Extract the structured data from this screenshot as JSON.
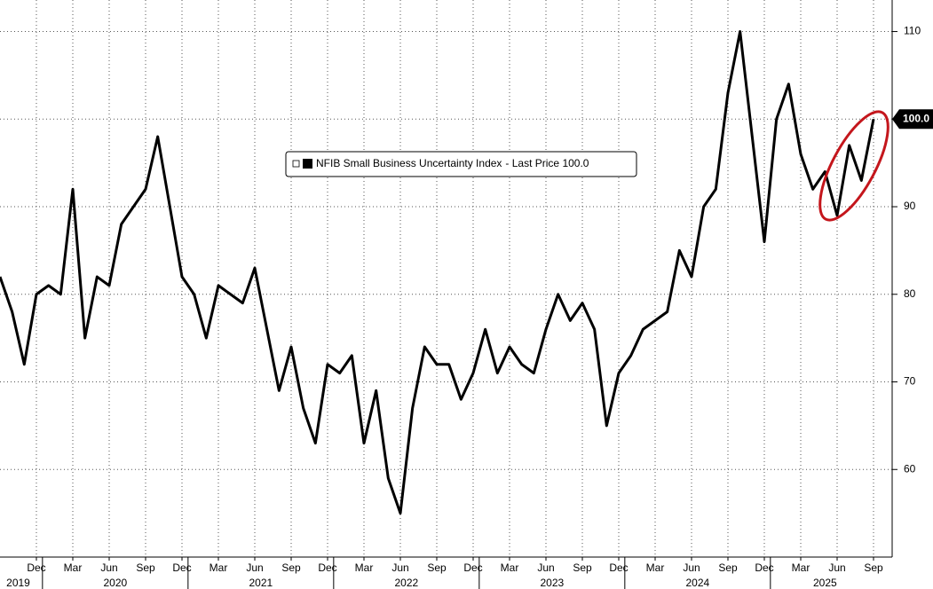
{
  "chart_data": {
    "type": "line",
    "x": [
      "2019-09",
      "2019-10",
      "2019-11",
      "2019-12",
      "2020-01",
      "2020-02",
      "2020-03",
      "2020-04",
      "2020-05",
      "2020-06",
      "2020-07",
      "2020-08",
      "2020-09",
      "2020-10",
      "2020-11",
      "2020-12",
      "2021-01",
      "2021-02",
      "2021-03",
      "2021-04",
      "2021-05",
      "2021-06",
      "2021-07",
      "2021-08",
      "2021-09",
      "2021-10",
      "2021-11",
      "2021-12",
      "2022-01",
      "2022-02",
      "2022-03",
      "2022-04",
      "2022-05",
      "2022-06",
      "2022-07",
      "2022-08",
      "2022-09",
      "2022-10",
      "2022-11",
      "2022-12",
      "2023-01",
      "2023-02",
      "2023-03",
      "2023-04",
      "2023-05",
      "2023-06",
      "2023-07",
      "2023-08",
      "2023-09",
      "2023-10",
      "2023-11",
      "2023-12",
      "2024-01",
      "2024-02",
      "2024-03",
      "2024-04",
      "2024-05",
      "2024-06",
      "2024-07",
      "2024-08",
      "2024-09",
      "2024-10",
      "2024-11",
      "2024-12",
      "2025-01",
      "2025-02",
      "2025-03",
      "2025-04",
      "2025-05",
      "2025-06",
      "2025-07",
      "2025-08",
      "2025-09"
    ],
    "series": [
      {
        "name": "NFIB Small Business Uncertainty Index",
        "color": "#000000",
        "values": [
          82,
          78,
          72,
          80,
          81,
          80,
          92,
          75,
          82,
          81,
          88,
          90,
          92,
          98,
          90,
          82,
          80,
          75,
          81,
          80,
          79,
          83,
          76,
          69,
          74,
          67,
          63,
          72,
          71,
          73,
          63,
          69,
          59,
          55,
          67,
          74,
          72,
          72,
          68,
          71,
          76,
          71,
          74,
          72,
          71,
          76,
          80,
          77,
          79,
          76,
          65,
          71,
          73,
          76,
          77,
          78,
          85,
          82,
          90,
          92,
          103,
          110,
          98,
          86,
          100,
          104,
          96,
          92,
          94,
          89,
          97,
          93,
          100
        ]
      }
    ],
    "legend_tail": "- Last Price 100.0",
    "last_price_label": {
      "value": 100,
      "label": "100.0"
    },
    "ylim": [
      50,
      113.6
    ],
    "yticks": [
      60,
      70,
      80,
      90,
      100,
      110
    ],
    "xticks": [
      {
        "value": "2019-12",
        "label": "Dec"
      },
      {
        "value": "2020-03",
        "label": "Mar"
      },
      {
        "value": "2020-06",
        "label": "Jun"
      },
      {
        "value": "2020-09",
        "label": "Sep"
      },
      {
        "value": "2020-12",
        "label": "Dec"
      },
      {
        "value": "2021-03",
        "label": "Mar"
      },
      {
        "value": "2021-06",
        "label": "Jun"
      },
      {
        "value": "2021-09",
        "label": "Sep"
      },
      {
        "value": "2021-12",
        "label": "Dec"
      },
      {
        "value": "2022-03",
        "label": "Mar"
      },
      {
        "value": "2022-06",
        "label": "Jun"
      },
      {
        "value": "2022-09",
        "label": "Sep"
      },
      {
        "value": "2022-12",
        "label": "Dec"
      },
      {
        "value": "2023-03",
        "label": "Mar"
      },
      {
        "value": "2023-06",
        "label": "Jun"
      },
      {
        "value": "2023-09",
        "label": "Sep"
      },
      {
        "value": "2023-12",
        "label": "Dec"
      },
      {
        "value": "2024-03",
        "label": "Mar"
      },
      {
        "value": "2024-06",
        "label": "Jun"
      },
      {
        "value": "2024-09",
        "label": "Sep"
      },
      {
        "value": "2024-12",
        "label": "Dec"
      },
      {
        "value": "2025-03",
        "label": "Mar"
      },
      {
        "value": "2025-06",
        "label": "Jun"
      },
      {
        "value": "2025-09",
        "label": "Sep"
      }
    ],
    "years": [
      2019,
      2020,
      2021,
      2022,
      2023,
      2024,
      2025
    ],
    "grid": true
  }
}
